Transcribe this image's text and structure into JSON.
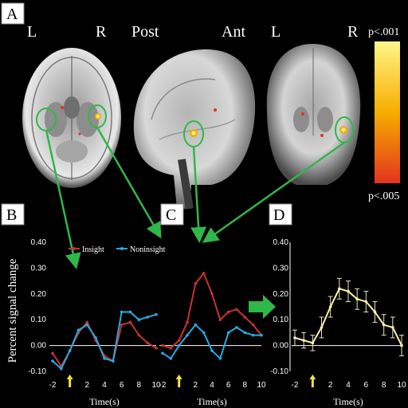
{
  "panels": {
    "a": "A",
    "b": "B",
    "c": "C",
    "d": "D"
  },
  "orientation": {
    "axial_left": "L",
    "axial_right": "R",
    "sagittal_post": "Post",
    "sagittal_ant": "Ant",
    "coronal_left": "L",
    "coronal_right": "R"
  },
  "colorbar": {
    "top": "p<.001",
    "bottom": "p<.005",
    "colors": [
      "#fff68a",
      "#f7ad00",
      "#e2341e"
    ]
  },
  "y_axis_label": "Percent signal change",
  "chart_data": [
    {
      "type": "line",
      "panel": "B",
      "x": [
        -2,
        -1,
        0,
        1,
        2,
        3,
        4,
        5,
        6,
        7,
        8,
        9,
        10
      ],
      "series": [
        {
          "name": "Insight",
          "color": "#c83232",
          "values": [
            -0.03,
            -0.08,
            -0.02,
            0.05,
            0.09,
            0.02,
            -0.04,
            -0.06,
            0.08,
            0.09,
            0.04,
            0.01,
            -0.01
          ]
        },
        {
          "name": "Noninsight",
          "color": "#2aa8e0",
          "values": [
            -0.06,
            -0.09,
            -0.02,
            0.06,
            0.08,
            0.03,
            -0.05,
            -0.06,
            0.13,
            0.13,
            0.1,
            0.11,
            0.12
          ]
        }
      ],
      "ylim": [
        -0.1,
        0.4
      ],
      "yticks": [
        "0.40",
        "0.30",
        "0.20",
        "0.10",
        "0.00",
        "-0.10"
      ],
      "xticks": [
        "-2",
        "2",
        "4",
        "6",
        "8",
        "10"
      ],
      "xlabel": "Time(s)",
      "legend": "top",
      "arrow_at": 0
    },
    {
      "type": "line",
      "panel": "C",
      "x": [
        -2,
        -1,
        0,
        1,
        2,
        3,
        4,
        5,
        6,
        7,
        8,
        9,
        10
      ],
      "series": [
        {
          "name": "Insight",
          "color": "#c83232",
          "values": [
            0.0,
            -0.01,
            0.02,
            0.09,
            0.24,
            0.28,
            0.2,
            0.1,
            0.13,
            0.14,
            0.11,
            0.08,
            0.04
          ]
        },
        {
          "name": "Noninsight",
          "color": "#2aa8e0",
          "values": [
            -0.03,
            -0.05,
            0.0,
            0.04,
            0.08,
            0.05,
            -0.02,
            -0.05,
            0.05,
            0.07,
            0.05,
            0.04,
            0.04
          ]
        }
      ],
      "ylim": [
        -0.1,
        0.4
      ],
      "xticks": [
        "-2",
        "2",
        "4",
        "6",
        "8",
        "10"
      ],
      "xlabel": "Time(s)",
      "arrow_at": 0
    },
    {
      "type": "line",
      "panel": "D",
      "x": [
        -2,
        -1,
        0,
        1,
        2,
        3,
        4,
        5,
        6,
        7,
        8,
        9,
        10
      ],
      "series": [
        {
          "color": "#fff2a8",
          "values": [
            0.03,
            0.02,
            0.01,
            0.07,
            0.15,
            0.22,
            0.21,
            0.18,
            0.17,
            0.13,
            0.08,
            0.07,
            0.0
          ],
          "errors": [
            0.03,
            0.03,
            0.03,
            0.04,
            0.04,
            0.04,
            0.04,
            0.04,
            0.04,
            0.04,
            0.04,
            0.04,
            0.04
          ]
        }
      ],
      "ylim": [
        -0.1,
        0.4
      ],
      "yticks": [
        "0.40",
        "0.30",
        "0.20",
        "0.10",
        "0.00",
        "-0.10"
      ],
      "xticks": [
        "-2",
        "2",
        "4",
        "6",
        "8",
        "10"
      ],
      "xlabel": "Time(s)",
      "arrow_at": 0
    }
  ]
}
